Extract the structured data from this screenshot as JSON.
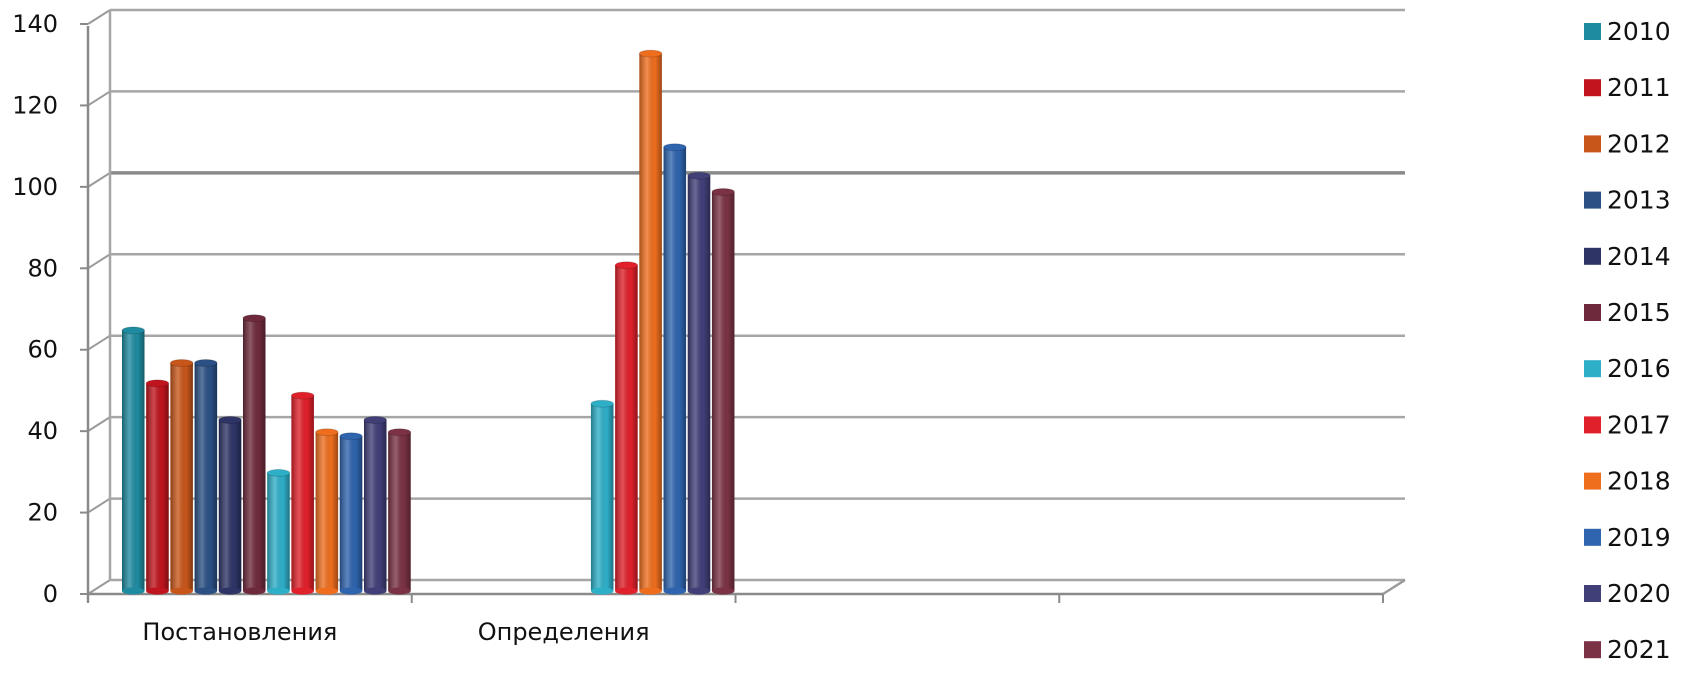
{
  "chart_data": {
    "type": "bar",
    "categories": [
      "Постановления",
      "Определения",
      "",
      ""
    ],
    "series": [
      {
        "name": "2010",
        "color": "#1F8BA0",
        "values": [
          64,
          null,
          null,
          null
        ]
      },
      {
        "name": "2011",
        "color": "#C0141E",
        "values": [
          51,
          null,
          null,
          null
        ]
      },
      {
        "name": "2012",
        "color": "#C8561A",
        "values": [
          56,
          null,
          null,
          null
        ]
      },
      {
        "name": "2013",
        "color": "#2A5084",
        "values": [
          56,
          null,
          null,
          null
        ]
      },
      {
        "name": "2014",
        "color": "#2E3466",
        "values": [
          42,
          null,
          null,
          null
        ]
      },
      {
        "name": "2015",
        "color": "#6E2A3C",
        "values": [
          67,
          null,
          null,
          null
        ]
      },
      {
        "name": "2016",
        "color": "#2EAFC8",
        "values": [
          29,
          46,
          null,
          null
        ]
      },
      {
        "name": "2017",
        "color": "#E0202A",
        "values": [
          48,
          80,
          null,
          null
        ]
      },
      {
        "name": "2018",
        "color": "#EE6E1E",
        "values": [
          39,
          132,
          null,
          null
        ]
      },
      {
        "name": "2019",
        "color": "#2F64AE",
        "values": [
          38,
          109,
          null,
          null
        ]
      },
      {
        "name": "2020",
        "color": "#403F78",
        "values": [
          42,
          102,
          null,
          null
        ]
      },
      {
        "name": "2021",
        "color": "#7A3244",
        "values": [
          39,
          98,
          null,
          null
        ]
      }
    ],
    "y_ticks": [
      "0",
      "20",
      "40",
      "60",
      "80",
      "100",
      "120",
      "140"
    ],
    "ylim": [
      0,
      140
    ],
    "grid": true,
    "legend_position": "right",
    "style": "3d-cylinder"
  }
}
